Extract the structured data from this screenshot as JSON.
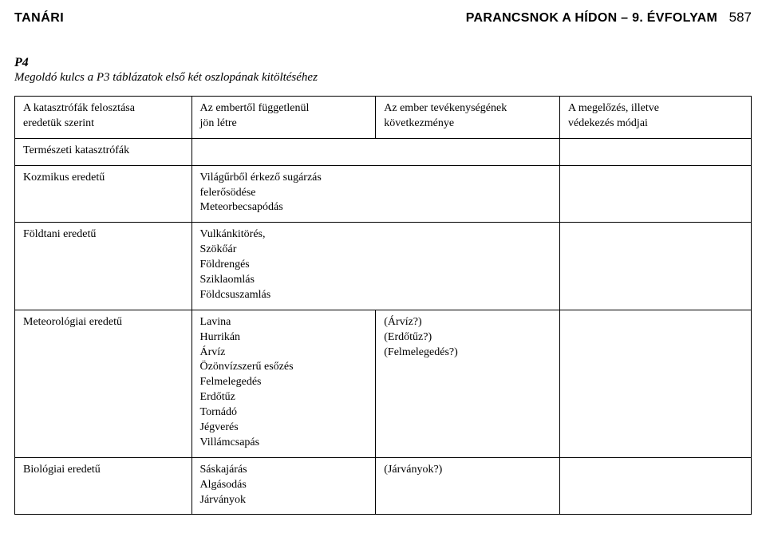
{
  "header": {
    "left": "TANÁRI",
    "right": "PARANCSNOK A HÍDON – 9. ÉVFOLYAM",
    "page": "587"
  },
  "label": "P4",
  "subtitle": "Megoldó kulcs a P3 táblázatok első két oszlopának kitöltéséhez",
  "colHeaders": {
    "c1a": "A katasztrófák felosztása",
    "c1b": "eredetük szerint",
    "c2a": "Az embertől függetlenül",
    "c2b": "jön létre",
    "c3a": "Az ember tevékenységének",
    "c3b": "következménye",
    "c4a": "A megelőzés, illetve",
    "c4b": "védekezés módjai"
  },
  "section1": "Természeti katasztrófák",
  "rows": {
    "r1": {
      "c1": "Kozmikus eredetű",
      "c2": "Világűrből érkező sugárzás felerősödése\nMeteorbecsapódás"
    },
    "r2": {
      "c1": "Földtani eredetű",
      "c2": "Vulkánkitörés,\nSzökőár\nFöldrengés\nSziklaomlás\nFöldcsuszamlás"
    },
    "r3": {
      "c1": "Meteorológiai eredetű",
      "c2": "Lavina\nHurrikán\nÁrvíz\nÖzönvízszerű esőzés\nFelmelegedés\nErdőtűz\nTornádó\nJégverés\nVillámcsapás",
      "c3": "(Árvíz?)\n(Erdőtűz?)\n(Felmelegedés?)"
    },
    "r4": {
      "c1": "Biológiai eredetű",
      "c2": "Sáskajárás\nAlgásodás\nJárványok",
      "c3": "(Járványok?)"
    }
  }
}
